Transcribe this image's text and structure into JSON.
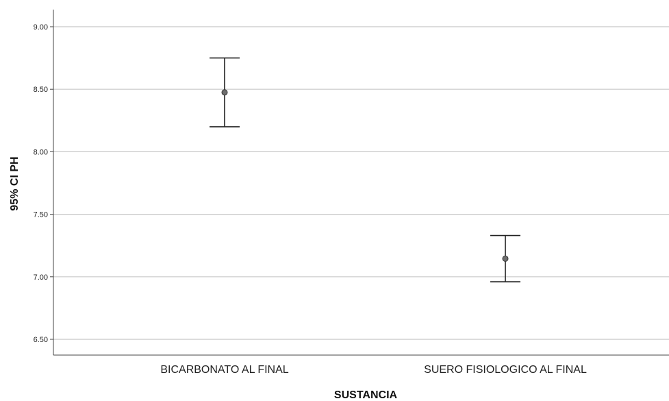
{
  "chart_data": {
    "type": "errorbar",
    "xlabel": "SUSTANCIA",
    "ylabel": "95% CI PH",
    "ylim": [
      6.5,
      9.0
    ],
    "yticks": [
      "6.50",
      "7.00",
      "7.50",
      "8.00",
      "8.50",
      "9.00"
    ],
    "ytick_values": [
      6.5,
      7.0,
      7.5,
      8.0,
      8.5,
      9.0
    ],
    "grid": true,
    "categories": [
      "BICARBONATO AL FINAL",
      "SUERO FISIOLOGICO AL FINAL"
    ],
    "means": [
      8.475,
      7.145
    ],
    "ci_lower": [
      8.2,
      6.96
    ],
    "ci_upper": [
      8.75,
      7.33
    ],
    "colors": {
      "grid": "#c8c8c8",
      "axis": "#444444",
      "errorbar": "#222222",
      "marker_fill": "#6e6e6e",
      "marker_stroke": "#333333"
    }
  }
}
